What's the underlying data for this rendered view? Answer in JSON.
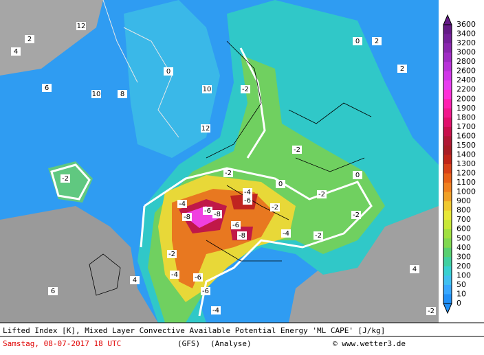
{
  "caption": {
    "line1": "Lifted Index [K], Mixed Layer Convective Available Potential Energy 'ML CAPE' [J/kg]",
    "date": "Samstag, 08-07-2017  18 UTC",
    "model": "(GFS)",
    "run": "(Analyse)",
    "credit": "© www.wetter3.de"
  },
  "legend": {
    "labels": [
      "3600",
      "3400",
      "3200",
      "3000",
      "2800",
      "2600",
      "2400",
      "2200",
      "2000",
      "1900",
      "1800",
      "1700",
      "1600",
      "1500",
      "1400",
      "1300",
      "1200",
      "1100",
      "1000",
      "900",
      "800",
      "700",
      "600",
      "500",
      "400",
      "300",
      "200",
      "100",
      "50",
      "10",
      "0"
    ],
    "colors": [
      "#641a86",
      "#75209a",
      "#8a26ae",
      "#a02cc4",
      "#b832d8",
      "#d036e8",
      "#e83cf0",
      "#ff30d8",
      "#ff20b0",
      "#f0188c",
      "#e0106c",
      "#c8104c",
      "#b01834",
      "#a81c24",
      "#c02418",
      "#d84018",
      "#e86018",
      "#f08020",
      "#f0a028",
      "#f0c830",
      "#e8e838",
      "#c8e838",
      "#a0e040",
      "#80d850",
      "#58d070",
      "#40d0a0",
      "#38d0d0",
      "#40c0f0",
      "#38a8ff",
      "#2090f8"
    ]
  },
  "map": {
    "labels": [
      "12",
      "2",
      "4",
      "6",
      "10",
      "8",
      "-2",
      "0",
      "10",
      "12",
      "-2",
      "-2",
      "-2",
      "-4",
      "-6",
      "-8",
      "-6",
      "-4",
      "-8",
      "-6",
      "-8",
      "-2",
      "-2",
      "-2",
      "-2",
      "0",
      "0",
      "-4",
      "-2",
      "-4",
      "-6",
      "-6",
      "-4",
      "2",
      "0",
      "4",
      "6",
      "-2",
      "2",
      "4"
    ]
  }
}
